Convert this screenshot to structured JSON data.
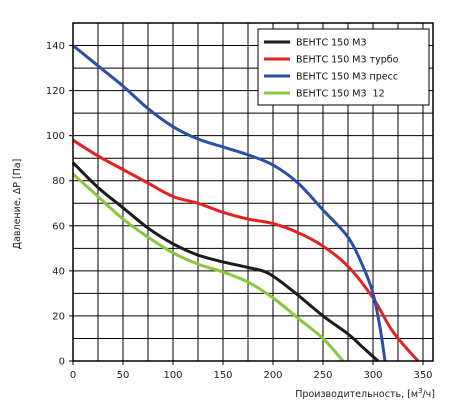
{
  "chart_data": {
    "type": "line",
    "title": "",
    "xlabel": "Производительность, [м",
    "xlabel_sup": "3",
    "xlabel_tail": "/ч]",
    "ylabel": "Давление, ΔP [Па]",
    "xlim": [
      0,
      360
    ],
    "ylim": [
      0,
      150
    ],
    "x_ticks": [
      0,
      50,
      100,
      150,
      200,
      250,
      300,
      350
    ],
    "y_ticks": [
      0,
      20,
      40,
      60,
      80,
      100,
      120,
      140
    ],
    "grid": true,
    "x_grid_step": 25,
    "y_grid_step": 10,
    "legend_position": "top-right",
    "series": [
      {
        "name": "ВЕНТС 150 М3",
        "color": "#1a1a1a",
        "points": [
          [
            0,
            88
          ],
          [
            25,
            77
          ],
          [
            50,
            68
          ],
          [
            75,
            59
          ],
          [
            100,
            52
          ],
          [
            125,
            47
          ],
          [
            150,
            44
          ],
          [
            175,
            41.5
          ],
          [
            195,
            39
          ],
          [
            220,
            31
          ],
          [
            250,
            20
          ],
          [
            275,
            12
          ],
          [
            290,
            6
          ],
          [
            305,
            0
          ]
        ]
      },
      {
        "name": "ВЕНТС 150 М3 турбо",
        "color": "#e32222",
        "points": [
          [
            0,
            98
          ],
          [
            25,
            91
          ],
          [
            50,
            85
          ],
          [
            75,
            79
          ],
          [
            100,
            73
          ],
          [
            125,
            70
          ],
          [
            150,
            66
          ],
          [
            175,
            63
          ],
          [
            200,
            61
          ],
          [
            225,
            57
          ],
          [
            250,
            51
          ],
          [
            275,
            42
          ],
          [
            300,
            28
          ],
          [
            320,
            13
          ],
          [
            345,
            0
          ]
        ]
      },
      {
        "name": "ВЕНТС 150 М3 пресс",
        "color": "#2a4fa8",
        "points": [
          [
            0,
            140
          ],
          [
            25,
            131
          ],
          [
            50,
            122
          ],
          [
            75,
            112
          ],
          [
            100,
            104
          ],
          [
            125,
            98.5
          ],
          [
            150,
            95
          ],
          [
            175,
            91.5
          ],
          [
            200,
            87
          ],
          [
            225,
            79
          ],
          [
            250,
            67
          ],
          [
            275,
            55
          ],
          [
            290,
            42
          ],
          [
            300,
            30
          ],
          [
            307,
            15
          ],
          [
            312,
            0
          ]
        ]
      },
      {
        "name": "ВЕНТС 150 М3  12",
        "color": "#8cc63f",
        "points": [
          [
            0,
            83
          ],
          [
            25,
            73
          ],
          [
            50,
            63
          ],
          [
            75,
            55
          ],
          [
            100,
            48
          ],
          [
            125,
            43
          ],
          [
            150,
            39.5
          ],
          [
            175,
            35
          ],
          [
            200,
            28
          ],
          [
            225,
            19
          ],
          [
            250,
            10
          ],
          [
            270,
            0
          ]
        ]
      }
    ]
  }
}
